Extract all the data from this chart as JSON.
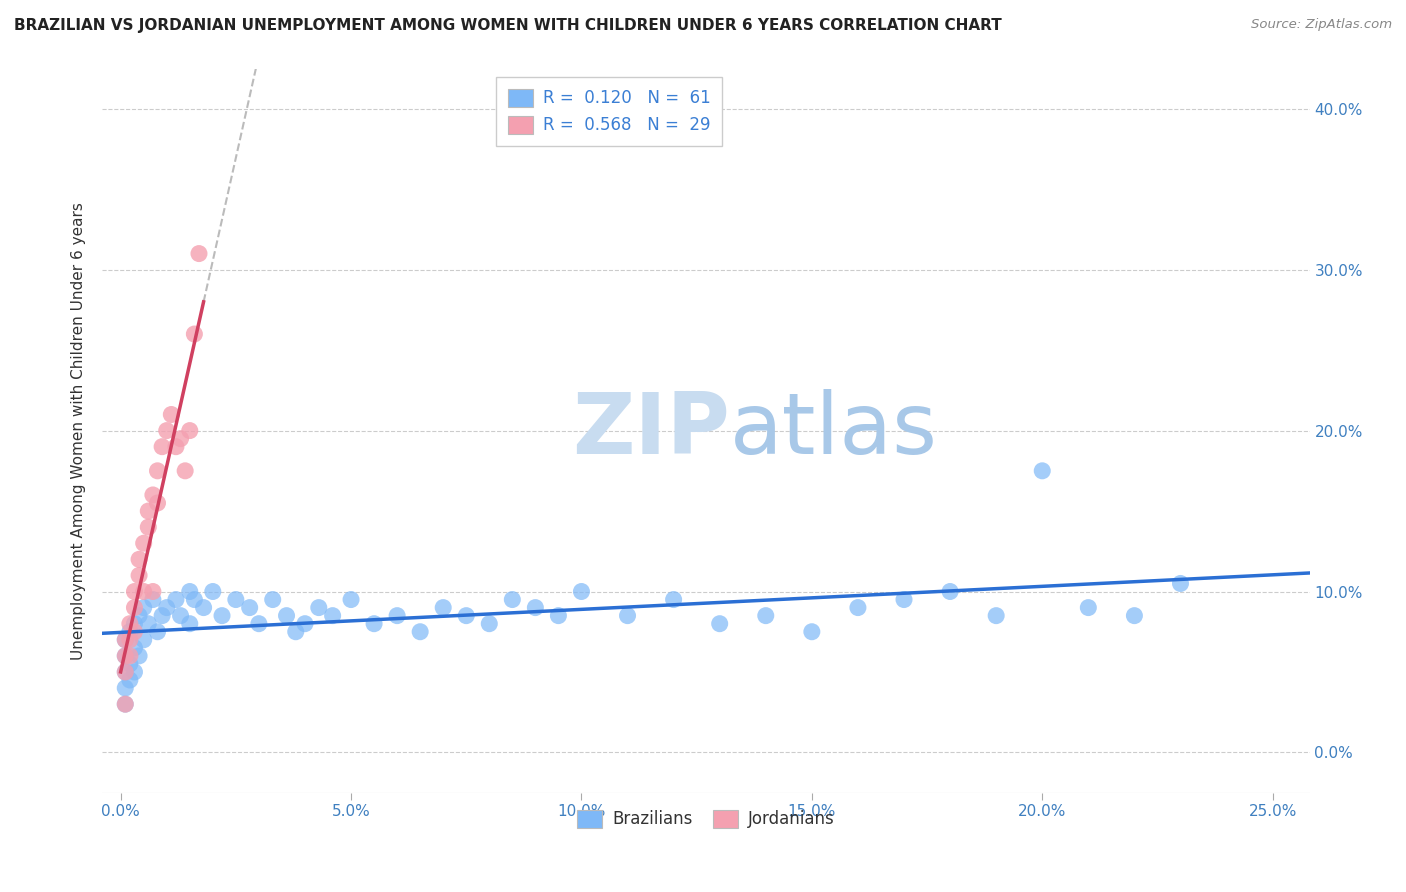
{
  "title": "BRAZILIAN VS JORDANIAN UNEMPLOYMENT AMONG WOMEN WITH CHILDREN UNDER 6 YEARS CORRELATION CHART",
  "source": "Source: ZipAtlas.com",
  "ylabel": "Unemployment Among Women with Children Under 6 years",
  "x_tick_labels": [
    "0.0%",
    "5.0%",
    "10.0%",
    "15.0%",
    "20.0%",
    "25.0%"
  ],
  "x_ticks": [
    0.0,
    0.05,
    0.1,
    0.15,
    0.2,
    0.25
  ],
  "y_ticks": [
    0.0,
    0.1,
    0.2,
    0.3,
    0.4
  ],
  "y_tick_labels": [
    "0.0%",
    "10.0%",
    "20.0%",
    "30.0%",
    "40.0%"
  ],
  "legend_r_brazil": "R =  0.120",
  "legend_n_brazil": "N =  61",
  "legend_r_jordan": "R =  0.568",
  "legend_n_jordan": "N =  29",
  "brazil_color": "#7EB8F7",
  "jordan_color": "#F4A0B0",
  "brazil_line_color": "#2B6FD4",
  "jordan_line_color": "#D04060",
  "jordan_extrap_color": "#BBBBBB",
  "watermark_zip": "ZIP",
  "watermark_atlas": "atlas",
  "watermark_color": "#C8DCF0",
  "xlim": [
    -0.004,
    0.258
  ],
  "ylim": [
    -0.025,
    0.425
  ],
  "background_color": "#FFFFFF",
  "grid_color": "#CCCCCC",
  "brazil_x": [
    0.001,
    0.001,
    0.001,
    0.001,
    0.001,
    0.002,
    0.002,
    0.002,
    0.003,
    0.003,
    0.003,
    0.004,
    0.004,
    0.005,
    0.005,
    0.006,
    0.007,
    0.008,
    0.009,
    0.01,
    0.012,
    0.013,
    0.015,
    0.015,
    0.016,
    0.018,
    0.02,
    0.022,
    0.025,
    0.028,
    0.03,
    0.033,
    0.036,
    0.038,
    0.04,
    0.043,
    0.046,
    0.05,
    0.055,
    0.06,
    0.065,
    0.07,
    0.075,
    0.08,
    0.085,
    0.09,
    0.095,
    0.1,
    0.11,
    0.12,
    0.13,
    0.14,
    0.15,
    0.16,
    0.17,
    0.18,
    0.19,
    0.2,
    0.21,
    0.22,
    0.23
  ],
  "brazil_y": [
    0.07,
    0.06,
    0.05,
    0.04,
    0.03,
    0.075,
    0.055,
    0.045,
    0.08,
    0.065,
    0.05,
    0.085,
    0.06,
    0.09,
    0.07,
    0.08,
    0.095,
    0.075,
    0.085,
    0.09,
    0.095,
    0.085,
    0.1,
    0.08,
    0.095,
    0.09,
    0.1,
    0.085,
    0.095,
    0.09,
    0.08,
    0.095,
    0.085,
    0.075,
    0.08,
    0.09,
    0.085,
    0.095,
    0.08,
    0.085,
    0.075,
    0.09,
    0.085,
    0.08,
    0.095,
    0.09,
    0.085,
    0.1,
    0.085,
    0.095,
    0.08,
    0.085,
    0.075,
    0.09,
    0.095,
    0.1,
    0.085,
    0.175,
    0.09,
    0.085,
    0.105
  ],
  "jordan_x": [
    0.001,
    0.001,
    0.001,
    0.001,
    0.002,
    0.002,
    0.002,
    0.003,
    0.003,
    0.003,
    0.004,
    0.004,
    0.005,
    0.005,
    0.006,
    0.006,
    0.007,
    0.007,
    0.008,
    0.008,
    0.009,
    0.01,
    0.011,
    0.012,
    0.013,
    0.014,
    0.015,
    0.016,
    0.017
  ],
  "jordan_y": [
    0.05,
    0.06,
    0.07,
    0.03,
    0.07,
    0.08,
    0.06,
    0.09,
    0.1,
    0.075,
    0.11,
    0.12,
    0.13,
    0.1,
    0.14,
    0.15,
    0.16,
    0.1,
    0.175,
    0.155,
    0.19,
    0.2,
    0.21,
    0.19,
    0.195,
    0.175,
    0.2,
    0.26,
    0.31
  ]
}
